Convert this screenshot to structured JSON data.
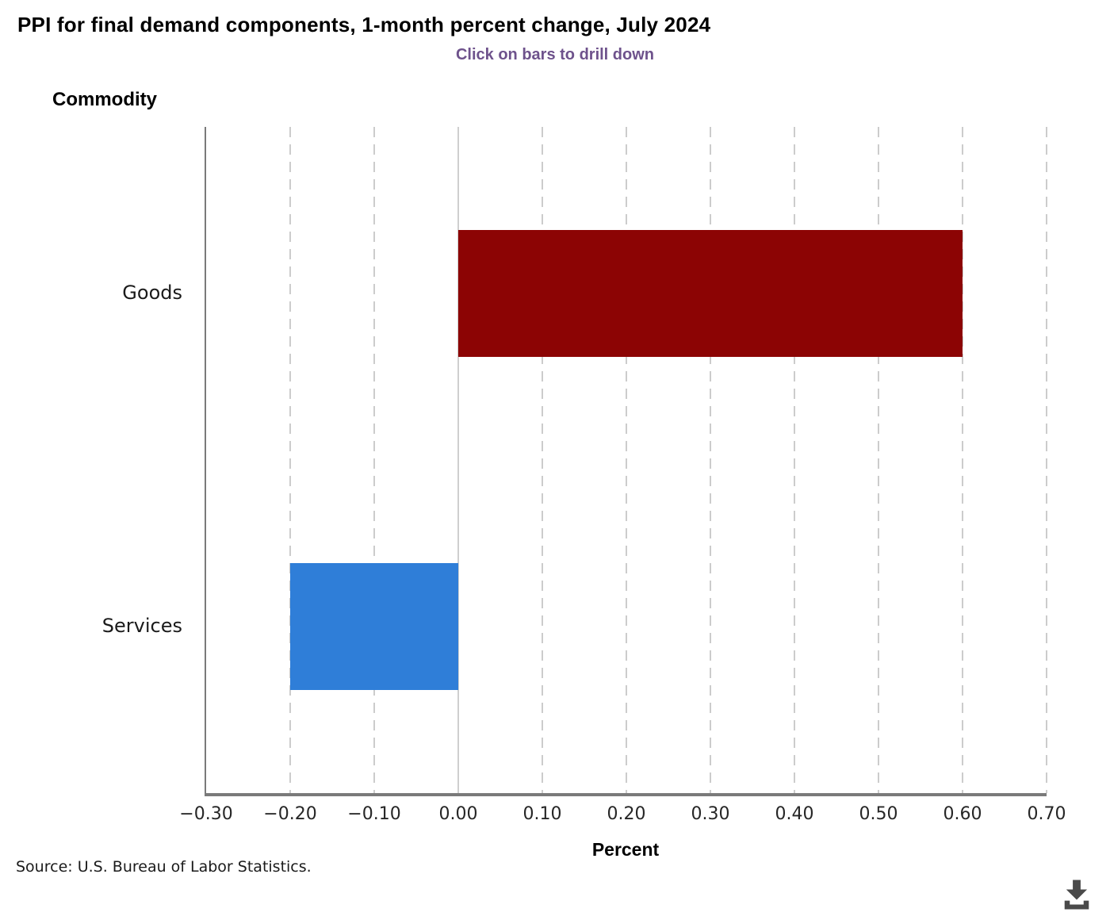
{
  "header": {
    "title": "PPI for final demand components, 1-month percent change, July 2024",
    "subtitle": "Click on bars to drill down"
  },
  "chart_data": {
    "type": "bar",
    "orientation": "horizontal",
    "title": "PPI for final demand components, 1-month percent change, July 2024",
    "subtitle": "Click on bars to drill down",
    "ylabel": "Commodity",
    "xlabel": "Percent",
    "categories": [
      "Goods",
      "Services"
    ],
    "values": [
      0.6,
      -0.2
    ],
    "bar_colors": [
      "#8c0404",
      "#2f7ed8"
    ],
    "xlim": [
      -0.3,
      0.7
    ],
    "xticks": [
      -0.3,
      -0.2,
      -0.1,
      0,
      0.1,
      0.2,
      0.3,
      0.4,
      0.5,
      0.6,
      0.7
    ],
    "xtick_labels": [
      "−0.30",
      "−0.20",
      "−0.10",
      "0.00",
      "0.10",
      "0.20",
      "0.30",
      "0.40",
      "0.50",
      "0.60",
      "0.70"
    ],
    "grid": "vertical-dashed",
    "zero_line": true,
    "legend": "none"
  },
  "footer": {
    "source": "Source: U.S. Bureau of Labor Statistics."
  },
  "icons": {
    "download": "download-icon"
  },
  "colors": {
    "subtitle_text": "#6e528c",
    "bar_goods": "#8c0404",
    "bar_services": "#2f7ed8",
    "axis_line": "#7a7a7a",
    "gridline": "#cccccc",
    "zero_line": "#cfcfcf",
    "tick_label": "#262626",
    "download_icon": "#4a4a4a"
  }
}
